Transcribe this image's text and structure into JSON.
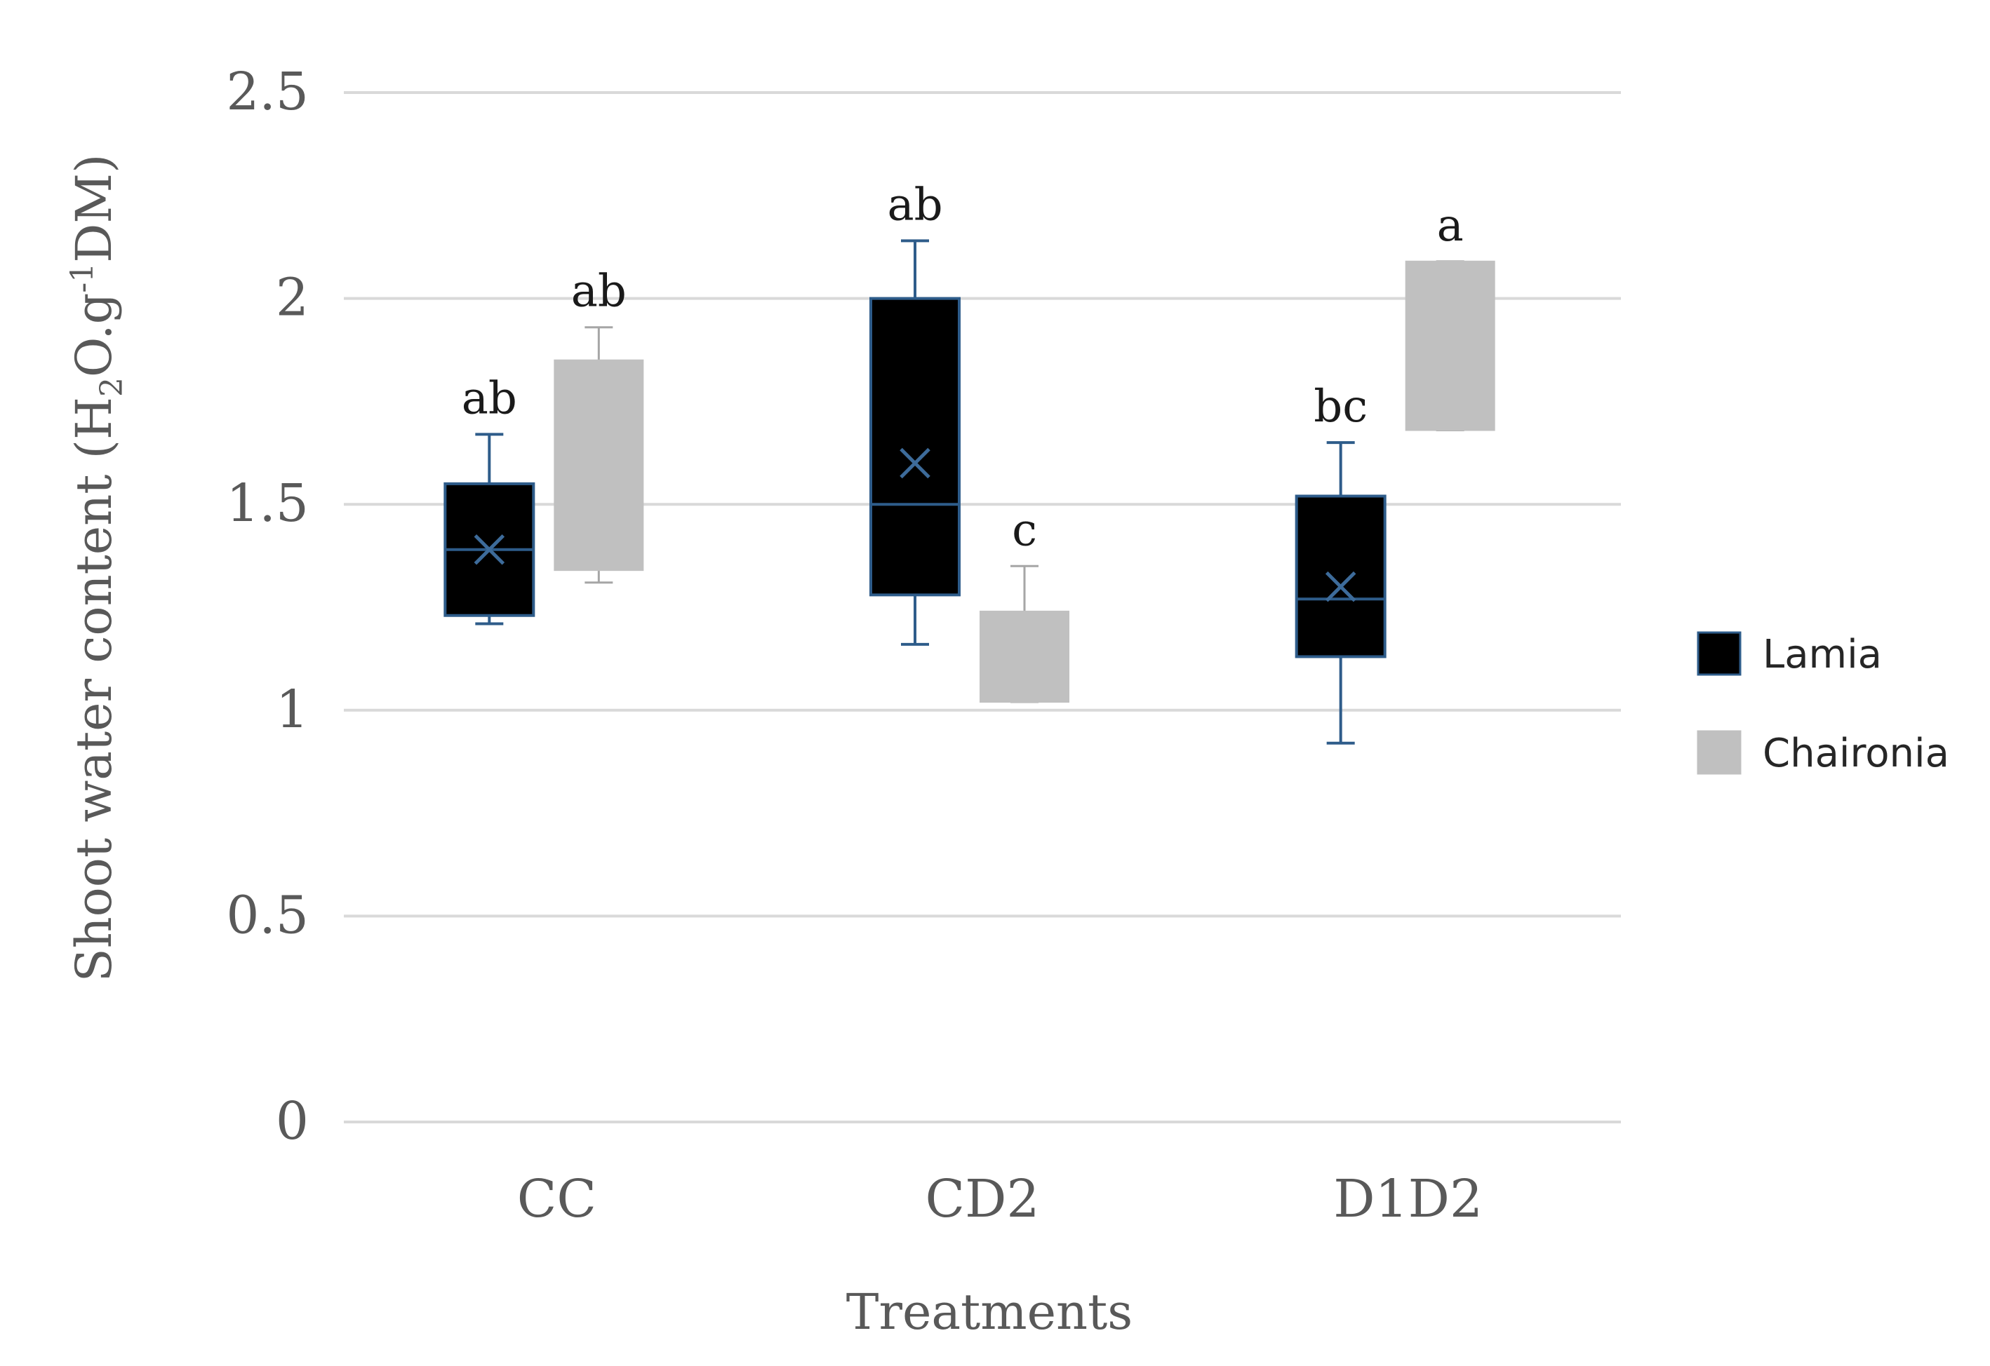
{
  "chart_data": {
    "type": "box",
    "xlabel": "Treatments",
    "ylabel_parts": {
      "a": "Shoot water content (H",
      "sub": "2",
      "b": "O.g",
      "sup": "-1",
      "c": "DM)"
    },
    "ylim": [
      0,
      2.5
    ],
    "yticks": [
      0,
      0.5,
      1,
      1.5,
      2,
      2.5
    ],
    "ytick_labels": [
      "0",
      "0.5",
      "1",
      "1.5",
      "2",
      "2.5"
    ],
    "categories": [
      "CC",
      "CD2",
      "D1D2"
    ],
    "series": [
      {
        "name": "Lamia",
        "color": "#000000",
        "edge_color": "#2e5c8a",
        "boxes": [
          {
            "min": 1.21,
            "q1": 1.23,
            "median": 1.39,
            "mean": 1.39,
            "q3": 1.55,
            "max": 1.67,
            "sig": "ab"
          },
          {
            "min": 1.16,
            "q1": 1.28,
            "median": 1.5,
            "mean": 1.6,
            "q3": 2.0,
            "max": 2.14,
            "sig": "ab"
          },
          {
            "min": 0.92,
            "q1": 1.13,
            "median": 1.27,
            "mean": 1.3,
            "q3": 1.52,
            "max": 1.65,
            "sig": "bc"
          }
        ]
      },
      {
        "name": "Chaironia",
        "color": "#c0c0c0",
        "edge_color": "#a6a6a6",
        "boxes": [
          {
            "min": 1.31,
            "q1": 1.34,
            "median": null,
            "mean": null,
            "q3": 1.85,
            "max": 1.93,
            "sig": "ab"
          },
          {
            "min": 1.02,
            "q1": 1.02,
            "median": null,
            "mean": null,
            "q3": 1.24,
            "max": 1.35,
            "sig": "c"
          },
          {
            "min": 1.68,
            "q1": 1.68,
            "median": null,
            "mean": null,
            "q3": 2.09,
            "max": 2.09,
            "sig": "a"
          }
        ]
      }
    ],
    "legend": "right"
  }
}
